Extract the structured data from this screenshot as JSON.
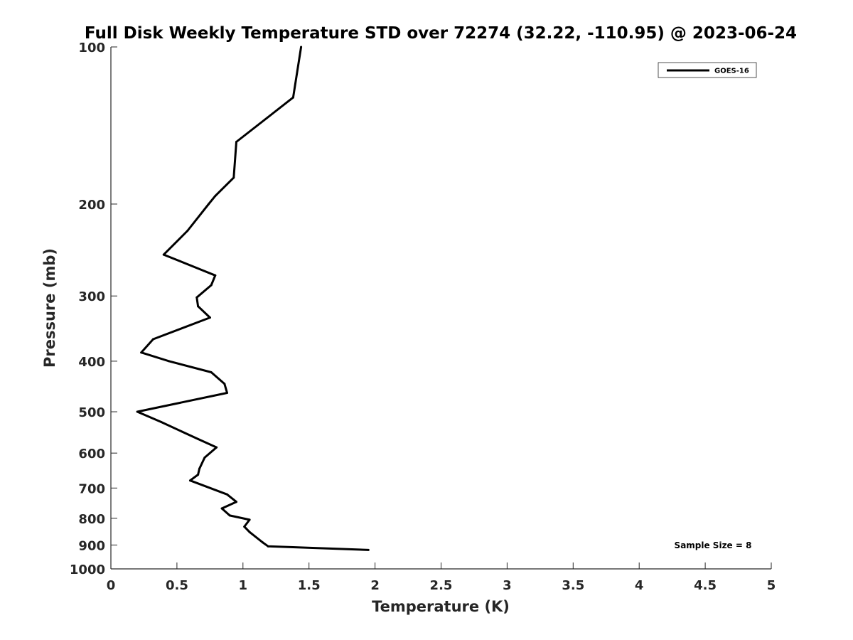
{
  "chart_data": {
    "type": "line",
    "title": "Full Disk Weekly Temperature STD over 72274 (32.22, -110.95) @ 2023-06-24",
    "xlabel": "Temperature (K)",
    "ylabel": "Pressure (mb)",
    "xlim": [
      0,
      5
    ],
    "ylim": [
      100,
      1000
    ],
    "y_scale": "log",
    "y_reversed": true,
    "grid": false,
    "legend_position": "top-right",
    "x_ticks": [
      "0",
      "0.5",
      "1",
      "1.5",
      "2",
      "2.5",
      "3",
      "3.5",
      "4",
      "4.5",
      "5"
    ],
    "y_ticks": [
      "100",
      "200",
      "300",
      "400",
      "500",
      "600",
      "700",
      "800",
      "900",
      "1000"
    ],
    "series": [
      {
        "name": "GOES-16",
        "color": "#000000",
        "x": [
          1.44,
          1.38,
          0.95,
          0.93,
          0.79,
          0.74,
          0.58,
          0.4,
          0.79,
          0.76,
          0.65,
          0.66,
          0.75,
          0.32,
          0.23,
          0.44,
          0.76,
          0.86,
          0.88,
          0.2,
          0.38,
          0.66,
          0.8,
          0.71,
          0.67,
          0.66,
          0.6,
          0.88,
          0.95,
          0.84,
          0.9,
          1.05,
          1.01,
          1.05,
          1.15,
          1.19,
          1.95
        ],
        "y": [
          100,
          125,
          152,
          178,
          193,
          200,
          225,
          250,
          274,
          286,
          302,
          314,
          330,
          363,
          385,
          400,
          420,
          442,
          460,
          500,
          523,
          564,
          585,
          612,
          643,
          660,
          677,
          720,
          744,
          766,
          790,
          805,
          830,
          850,
          890,
          905,
          920
        ]
      }
    ],
    "annotations": [
      "Sample Size = 8"
    ]
  }
}
